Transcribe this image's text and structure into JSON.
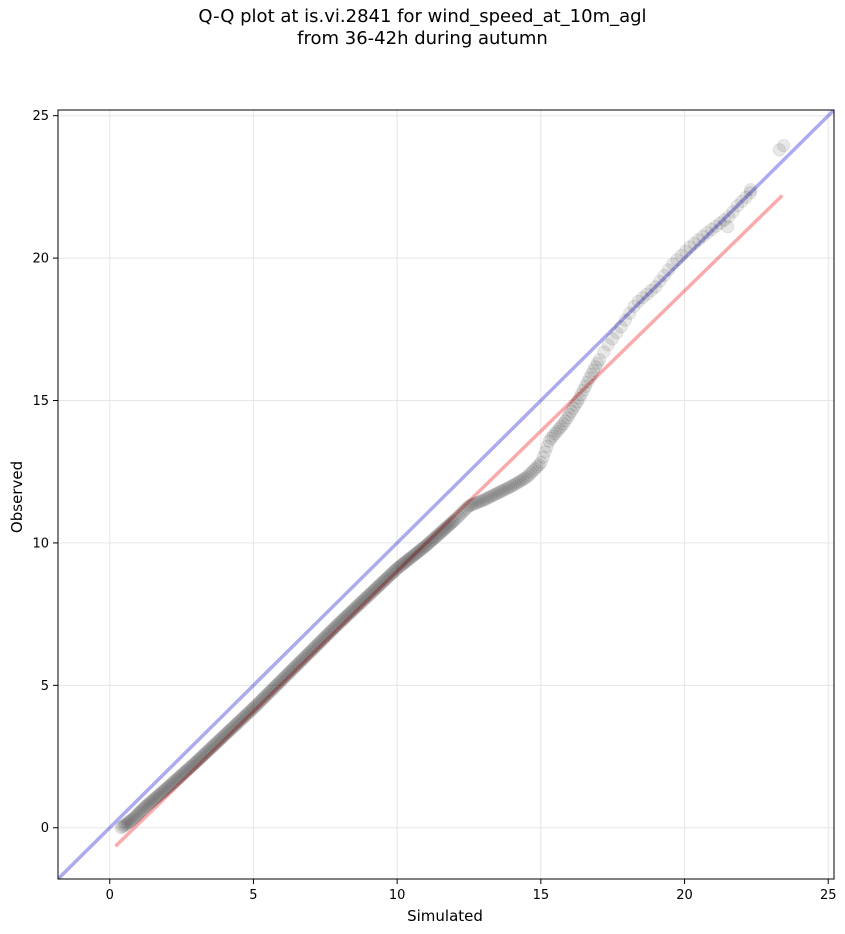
{
  "chart_data": {
    "type": "scatter",
    "title": "Q-Q plot at is.vi.2841 for wind_speed_at_10m_agl",
    "subtitle": "from 36-42h during autumn",
    "xlabel": "Simulated",
    "ylabel": "Observed",
    "xlim": [
      -1.8,
      25.2
    ],
    "ylim": [
      -1.8,
      25.2
    ],
    "xticks": [
      0,
      5,
      10,
      15,
      20,
      25
    ],
    "yticks": [
      0,
      5,
      10,
      15,
      20,
      25
    ],
    "grid": true,
    "legend": "none",
    "colors": {
      "points": "#000000",
      "identity_line": "#0000cc",
      "fit_line": "#ee0000"
    },
    "lines": [
      {
        "label": "",
        "kind": "identity",
        "x": [
          -1.8,
          25.2
        ],
        "y": [
          -1.8,
          25.2
        ]
      },
      {
        "label": "",
        "kind": "fit",
        "x": [
          0.2,
          23.4
        ],
        "y": [
          -0.65,
          22.2
        ]
      }
    ],
    "qq_curve": {
      "x": [
        0.4,
        0.8,
        1.2,
        2,
        3,
        4,
        5,
        6,
        7,
        8,
        9,
        10,
        11,
        12,
        12.5,
        13,
        13.5,
        14,
        14.5,
        15,
        15.3,
        15.8,
        16.3,
        16.8,
        17.3,
        17.8,
        18.3,
        19,
        19.6,
        20.2,
        20.8,
        21.2,
        21.6,
        21.8,
        22.0,
        22.2,
        22.4
      ],
      "y": [
        0.0,
        0.3,
        0.7,
        1.4,
        2.3,
        3.25,
        4.2,
        5.2,
        6.2,
        7.2,
        8.15,
        9.1,
        9.9,
        10.8,
        11.3,
        11.5,
        11.75,
        12.0,
        12.3,
        12.8,
        13.6,
        14.2,
        15.0,
        16.0,
        16.9,
        17.6,
        18.4,
        19.0,
        19.8,
        20.4,
        20.9,
        21.2,
        21.5,
        21.8,
        22.0,
        22.2,
        22.4
      ]
    },
    "outliers": {
      "x": [
        21.5,
        22.3,
        23.3,
        23.45
      ],
      "y": [
        21.1,
        22.4,
        23.8,
        23.95
      ]
    }
  }
}
